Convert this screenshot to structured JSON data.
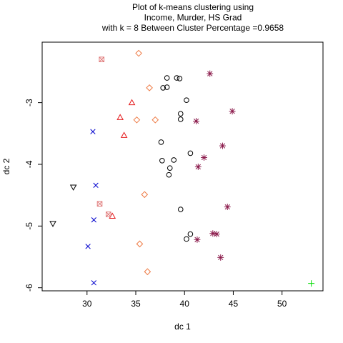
{
  "chart_data": {
    "type": "scatter",
    "title_lines": [
      "Plot of k-means clustering using",
      "Income, Murder, HS Grad",
      "with  k = 8 Between Cluster Percentage =0.9658"
    ],
    "xlabel": "dc 1",
    "ylabel": "dc 2",
    "xlim": [
      25.4,
      54.2
    ],
    "ylim": [
      -6.05,
      -2.02
    ],
    "x_ticks": [
      30,
      35,
      40,
      45,
      50
    ],
    "y_ticks": [
      -6,
      -5,
      -4,
      -3
    ],
    "grid": false,
    "legend": "none",
    "series": [
      {
        "marker": "circle",
        "color": "#000000",
        "points": [
          [
            38.2,
            -2.6
          ],
          [
            39.2,
            -2.6
          ],
          [
            39.5,
            -2.61
          ],
          [
            37.8,
            -2.76
          ],
          [
            38.2,
            -2.75
          ],
          [
            40.2,
            -2.96
          ],
          [
            39.6,
            -3.18
          ],
          [
            39.6,
            -3.27
          ],
          [
            37.6,
            -3.64
          ],
          [
            40.6,
            -3.82
          ],
          [
            37.7,
            -3.94
          ],
          [
            38.9,
            -3.93
          ],
          [
            38.5,
            -4.06
          ],
          [
            38.4,
            -4.17
          ],
          [
            39.6,
            -4.73
          ],
          [
            40.6,
            -5.13
          ],
          [
            40.2,
            -5.21
          ]
        ]
      },
      {
        "marker": "asterisk",
        "color": "#8b1a4b",
        "points": [
          [
            42.6,
            -2.53
          ],
          [
            41.2,
            -3.3
          ],
          [
            44.9,
            -3.14
          ],
          [
            43.9,
            -3.7
          ],
          [
            42.0,
            -3.89
          ],
          [
            41.4,
            -4.04
          ],
          [
            44.4,
            -4.69
          ],
          [
            42.9,
            -5.12
          ],
          [
            43.3,
            -5.13
          ],
          [
            41.3,
            -5.22
          ],
          [
            43.7,
            -5.51
          ]
        ]
      },
      {
        "marker": "diamond",
        "color": "#ee7942",
        "points": [
          [
            35.3,
            -2.2
          ],
          [
            36.4,
            -2.76
          ],
          [
            35.1,
            -3.28
          ],
          [
            37.0,
            -3.28
          ],
          [
            35.9,
            -4.49
          ],
          [
            35.4,
            -5.29
          ],
          [
            36.2,
            -5.74
          ]
        ]
      },
      {
        "marker": "triangle-up",
        "color": "#e41a1c",
        "points": [
          [
            34.6,
            -3.0
          ],
          [
            33.4,
            -3.24
          ],
          [
            33.8,
            -3.53
          ],
          [
            32.6,
            -4.84
          ]
        ]
      },
      {
        "marker": "cross",
        "color": "#0000cd",
        "points": [
          [
            30.6,
            -3.47
          ],
          [
            30.9,
            -4.34
          ],
          [
            30.7,
            -4.9
          ],
          [
            30.1,
            -5.33
          ],
          [
            30.7,
            -5.92
          ]
        ]
      },
      {
        "marker": "triangle-down",
        "color": "#000000",
        "points": [
          [
            28.6,
            -4.37
          ],
          [
            26.5,
            -4.96
          ]
        ]
      },
      {
        "marker": "square-x",
        "color": "#e07b7b",
        "points": [
          [
            31.5,
            -2.3
          ],
          [
            31.3,
            -4.64
          ],
          [
            32.2,
            -4.81
          ]
        ]
      },
      {
        "marker": "plus",
        "color": "#00dd00",
        "points": [
          [
            53.0,
            -5.93
          ]
        ]
      }
    ]
  }
}
